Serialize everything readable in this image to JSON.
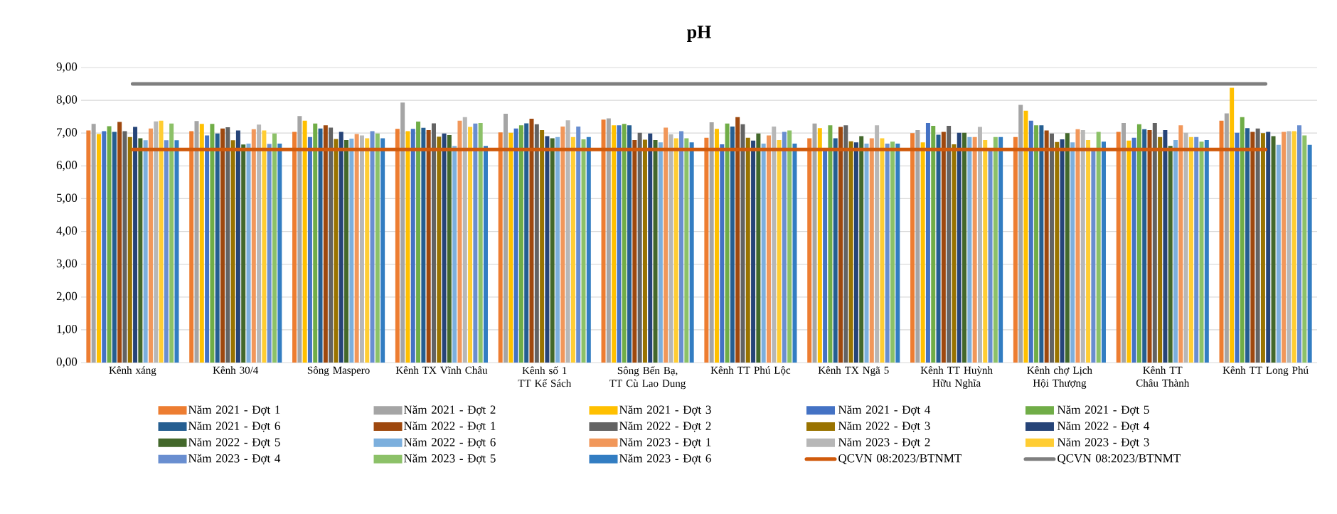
{
  "chart_data": {
    "type": "bar",
    "title": "pH",
    "categories": [
      "Kênh xáng",
      "Kênh 30/4",
      "Sông Maspero",
      "Kênh TX Vĩnh Châu",
      "Kênh số 1 TT Kế Sách",
      "Sông Bến Bạ, TT Cù Lao Dung",
      "Kênh TT Phú Lộc",
      "Kênh  TX Ngã 5",
      "Kênh TT Huỳnh Hữu Nghĩa",
      "Kênh chợ Lịch Hội Thượng",
      "Kênh  TT Châu Thành",
      "Kênh TT Long Phú"
    ],
    "ylim": [
      0,
      9
    ],
    "yticks": [
      {
        "value": 0,
        "label": "0,00"
      },
      {
        "value": 1,
        "label": "1,00"
      },
      {
        "value": 2,
        "label": "2,00"
      },
      {
        "value": 3,
        "label": "3,00"
      },
      {
        "value": 4,
        "label": "4,00"
      },
      {
        "value": 5,
        "label": "5,00"
      },
      {
        "value": 6,
        "label": "6,00"
      },
      {
        "value": 7,
        "label": "7,00"
      },
      {
        "value": 8,
        "label": "8,00"
      },
      {
        "value": 9,
        "label": "9,00"
      }
    ],
    "grid": "y",
    "legend": "bottom",
    "series": [
      {
        "name": "Năm 2021 - Đợt 1",
        "color": "#ed7d31",
        "values": [
          7.08,
          7.06,
          7.04,
          7.13,
          7.02,
          7.41,
          6.86,
          6.84,
          7.0,
          6.88,
          7.04,
          7.38
        ]
      },
      {
        "name": "Năm 2021 - Đợt 2",
        "color": "#a5a5a5",
        "values": [
          7.28,
          7.37,
          7.52,
          7.93,
          7.59,
          7.45,
          7.33,
          7.29,
          7.09,
          7.86,
          7.31,
          7.6
        ]
      },
      {
        "name": "Năm 2021 - Đợt 3",
        "color": "#ffc000",
        "values": [
          6.97,
          7.28,
          7.38,
          7.06,
          7.01,
          7.24,
          7.13,
          7.15,
          6.72,
          7.68,
          6.77,
          8.38
        ]
      },
      {
        "name": "Năm 2021 - Đợt 4",
        "color": "#4472c4",
        "values": [
          7.06,
          6.93,
          6.88,
          7.13,
          7.14,
          7.24,
          6.66,
          6.5,
          7.31,
          7.38,
          6.86,
          7.01
        ]
      },
      {
        "name": "Năm 2021 - Đợt 5",
        "color": "#70ad47",
        "values": [
          7.21,
          7.28,
          7.29,
          7.35,
          7.24,
          7.28,
          7.29,
          7.24,
          7.22,
          7.24,
          7.27,
          7.49
        ]
      },
      {
        "name": "Năm 2021 - Đợt 6",
        "color": "#255e91",
        "values": [
          7.04,
          6.99,
          7.14,
          7.16,
          7.3,
          7.24,
          7.2,
          6.84,
          6.95,
          7.24,
          7.12,
          7.15
        ]
      },
      {
        "name": "Năm 2022 - Đợt 1",
        "color": "#9e480e",
        "values": [
          7.34,
          7.14,
          7.24,
          7.09,
          7.44,
          6.79,
          7.49,
          7.19,
          7.04,
          7.08,
          7.09,
          7.04
        ]
      },
      {
        "name": "Năm 2022 - Đợt 2",
        "color": "#636363",
        "values": [
          7.06,
          7.18,
          7.17,
          7.3,
          7.27,
          7.01,
          7.27,
          7.24,
          7.22,
          6.99,
          7.31,
          7.14
        ]
      },
      {
        "name": "Năm 2022 - Đợt 3",
        "color": "#997300",
        "values": [
          6.88,
          6.78,
          6.82,
          6.89,
          7.09,
          6.8,
          6.86,
          6.75,
          6.66,
          6.73,
          6.88,
          7.0
        ]
      },
      {
        "name": "Năm 2022 - Đợt 4",
        "color": "#264478",
        "values": [
          7.19,
          7.08,
          7.04,
          6.99,
          6.91,
          6.99,
          6.77,
          6.72,
          7.01,
          6.81,
          7.09,
          7.04
        ]
      },
      {
        "name": "Năm 2022 - Đợt 5",
        "color": "#43682b",
        "values": [
          6.84,
          6.65,
          6.79,
          6.94,
          6.84,
          6.79,
          6.99,
          6.91,
          7.01,
          7.0,
          6.61,
          6.91
        ]
      },
      {
        "name": "Năm 2022 - Đợt 6",
        "color": "#7cafdd",
        "values": [
          6.78,
          6.68,
          6.83,
          6.61,
          6.88,
          6.72,
          6.68,
          6.68,
          6.88,
          6.72,
          6.79,
          6.64
        ]
      },
      {
        "name": "Năm 2023 - Đợt 1",
        "color": "#f1975a",
        "values": [
          7.14,
          7.12,
          6.97,
          7.38,
          7.2,
          7.17,
          6.93,
          6.84,
          6.88,
          7.12,
          7.24,
          7.04
        ]
      },
      {
        "name": "Năm 2023 - Đợt 2",
        "color": "#b7b7b7",
        "values": [
          7.36,
          7.26,
          6.93,
          7.49,
          7.39,
          6.96,
          7.2,
          7.24,
          7.19,
          7.09,
          7.01,
          7.06
        ]
      },
      {
        "name": "Năm 2023 - Đợt 3",
        "color": "#ffcd33",
        "values": [
          7.38,
          7.08,
          6.84,
          7.19,
          6.88,
          6.84,
          6.79,
          6.84,
          6.79,
          6.79,
          6.88,
          7.06
        ]
      },
      {
        "name": "Năm 2023 - Đợt 4",
        "color": "#698ed0",
        "values": [
          6.78,
          6.67,
          7.06,
          7.29,
          7.2,
          7.06,
          7.04,
          6.68,
          6.5,
          6.5,
          6.88,
          7.24
        ]
      },
      {
        "name": "Năm 2023 - Đợt 5",
        "color": "#8cc168",
        "values": [
          7.29,
          6.99,
          6.99,
          7.31,
          6.81,
          6.84,
          7.08,
          6.74,
          6.88,
          7.04,
          6.74,
          6.93
        ]
      },
      {
        "name": "Năm 2023 - Đợt 6",
        "color": "#327dc2",
        "values": [
          6.78,
          6.68,
          6.84,
          6.61,
          6.88,
          6.72,
          6.68,
          6.68,
          6.88,
          6.74,
          6.79,
          6.64
        ]
      },
      {
        "name": "QCVN 08:2023/BTNMT",
        "type": "line",
        "color": "#d05a0b",
        "values": [
          6.5,
          6.5,
          6.5,
          6.5,
          6.5,
          6.5,
          6.5,
          6.5,
          6.5,
          6.5,
          6.5,
          6.5
        ]
      },
      {
        "name": "QCVN 08:2023/BTNMT",
        "type": "line",
        "color": "#7f7f7f",
        "values": [
          8.5,
          8.5,
          8.5,
          8.5,
          8.5,
          8.5,
          8.5,
          8.5,
          8.5,
          8.5,
          8.5,
          8.5
        ]
      }
    ]
  }
}
